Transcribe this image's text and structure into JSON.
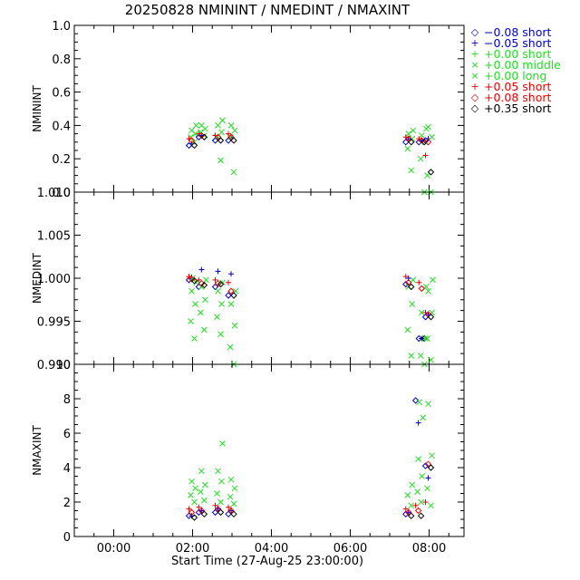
{
  "title": "20250828 NMININT / NMEDINT / NMAXINT",
  "xlabel": "Start Time (27-Aug-25 23:00:00)",
  "chart_data": {
    "type": "scatter",
    "x_unit": "time (HH:MM)",
    "x_ticks": [
      "00:00",
      "02:00",
      "04:00",
      "06:00",
      "08:00"
    ],
    "legend": [
      {
        "name": "−0.08 short",
        "color": "#0000cc",
        "marker": "diamond"
      },
      {
        "name": "−0.05 short",
        "color": "#0000cc",
        "marker": "plus"
      },
      {
        "name": "+0.00 short",
        "color": "#22dd22",
        "marker": "plus"
      },
      {
        "name": "+0.00 middle",
        "color": "#22dd22",
        "marker": "cross"
      },
      {
        "name": "+0.00 long",
        "color": "#22dd22",
        "marker": "cross"
      },
      {
        "name": "+0.05 short",
        "color": "#ee0000",
        "marker": "plus"
      },
      {
        "name": "+0.08 short",
        "color": "#ee0000",
        "marker": "diamond"
      },
      {
        "name": "+0.35 short",
        "color": "#000000",
        "marker": "diamond"
      }
    ],
    "panels": [
      {
        "ylabel": "NMININT",
        "ylim": [
          0.0,
          1.0
        ],
        "yticks": [
          0.0,
          0.2,
          0.4,
          0.6,
          0.8,
          1.0
        ],
        "ytick_labels": [
          "0.0",
          "0.2",
          "0.4",
          "0.6",
          "0.8",
          "1.0"
        ],
        "clusters": [
          {
            "x": "02:00",
            "series": {
              "-0.08": 0.28,
              "-0.05": 0.29,
              "green": [
                0.3,
                0.33,
                0.35,
                0.37,
                0.4
              ],
              "+0.05": 0.32,
              "+0.08": 0.31,
              "+0.35": 0.28
            }
          },
          {
            "x": "02:15",
            "series": {
              "-0.08": 0.33,
              "-0.05": 0.34,
              "green": [
                0.34,
                0.36,
                0.38,
                0.4
              ],
              "+0.05": 0.35,
              "+0.08": 0.34,
              "+0.35": 0.33
            }
          },
          {
            "x": "02:40",
            "series": {
              "-0.08": 0.31,
              "-0.05": 0.32,
              "green": [
                0.19,
                0.33,
                0.36,
                0.4,
                0.43
              ],
              "+0.05": 0.34,
              "+0.08": 0.33,
              "+0.35": 0.31
            }
          },
          {
            "x": "03:00",
            "series": {
              "-0.08": 0.31,
              "-0.05": 0.33,
              "green": [
                0.12,
                0.33,
                0.37,
                0.4
              ],
              "+0.05": 0.35,
              "+0.08": 0.33,
              "+0.35": 0.31
            }
          },
          {
            "x": "07:30",
            "series": {
              "-0.08": 0.3,
              "-0.05": 0.32,
              "green": [
                0.13,
                0.26,
                0.32,
                0.35,
                0.37
              ],
              "+0.05": 0.33,
              "+0.08": 0.32,
              "+0.35": 0.3
            }
          },
          {
            "x": "07:50",
            "series": {
              "-0.08": 0.3,
              "-0.05": 0.31,
              "green": [
                0.0,
                0.2,
                0.3,
                0.34,
                0.38
              ],
              "+0.05": 0.32,
              "+0.08": 0.31,
              "+0.35": 0.3
            }
          },
          {
            "x": "08:00",
            "series": {
              "-0.08": 0.31,
              "-0.05": 0.32,
              "green": [
                0.0,
                0.1,
                0.33,
                0.39
              ],
              "+0.05": 0.22,
              "+0.08": 0.3,
              "+0.35": 0.12
            }
          }
        ]
      },
      {
        "ylabel": "NMEDINT",
        "ylim": [
          0.99,
          1.01
        ],
        "yticks": [
          0.99,
          0.995,
          1.0,
          1.005,
          1.01
        ],
        "ytick_labels": [
          "0.990",
          "0.995",
          "1.000",
          "1.005",
          "1.010"
        ],
        "clusters": [
          {
            "x": "02:00",
            "series": {
              "-0.08": 0.9998,
              "-0.05": 1.0001,
              "green": [
                0.993,
                0.995,
                0.997,
                0.9985,
                0.9995,
                1.0
              ],
              "+0.05": 1.0002,
              "+0.08": 0.9999,
              "+0.35": 0.9997
            }
          },
          {
            "x": "02:15",
            "series": {
              "-0.08": 0.999,
              "-0.05": 1.001,
              "green": [
                0.994,
                0.996,
                0.9975,
                0.999,
                0.9998
              ],
              "+0.05": 0.9998,
              "+0.08": 0.9994,
              "+0.35": 0.9992
            }
          },
          {
            "x": "02:40",
            "series": {
              "-0.08": 0.999,
              "-0.05": 1.0008,
              "green": [
                0.9935,
                0.9955,
                0.997,
                0.9985,
                0.9995
              ],
              "+0.05": 0.9998,
              "+0.08": 0.9994,
              "+0.35": 0.9993
            }
          },
          {
            "x": "03:00",
            "series": {
              "-0.08": 0.998,
              "-0.05": 1.0005,
              "green": [
                0.99,
                0.992,
                0.9945,
                0.997,
                0.9985
              ],
              "+0.05": 0.9995,
              "+0.08": 0.9985,
              "+0.35": 0.998
            }
          },
          {
            "x": "07:30",
            "series": {
              "-0.08": 0.9993,
              "-0.05": 1.0,
              "green": [
                0.991,
                0.994,
                0.997,
                0.999,
                0.9998
              ],
              "+0.05": 1.0002,
              "+0.08": 0.9995,
              "+0.35": 0.999
            }
          },
          {
            "x": "07:50",
            "series": {
              "-0.08": 0.993,
              "-0.05": 0.993,
              "green": [
                0.99,
                0.991,
                0.993,
                0.996,
                0.999
              ],
              "+0.05": 0.9995,
              "+0.08": 0.9988,
              "+0.35": 0.993
            }
          },
          {
            "x": "08:00",
            "series": {
              "-0.08": 0.9955,
              "-0.05": 0.9958,
              "green": [
                0.9905,
                0.993,
                0.996,
                0.9985,
                0.9998
              ],
              "+0.05": 0.996,
              "+0.08": 0.9958,
              "+0.35": 0.9955
            }
          }
        ]
      },
      {
        "ylabel": "NMAXINT",
        "ylim": [
          0,
          10
        ],
        "yticks": [
          0,
          2,
          4,
          6,
          8,
          10
        ],
        "ytick_labels": [
          "0",
          "2",
          "4",
          "6",
          "8",
          "10"
        ],
        "clusters": [
          {
            "x": "02:00",
            "series": {
              "-0.08": 1.2,
              "-0.05": 1.2,
              "green": [
                2.0,
                2.4,
                2.8,
                3.2
              ],
              "+0.05": 1.6,
              "+0.08": 1.4,
              "+0.35": 1.1
            }
          },
          {
            "x": "02:15",
            "series": {
              "-0.08": 1.4,
              "-0.05": 1.5,
              "green": [
                2.1,
                2.6,
                3.0,
                3.8
              ],
              "+0.05": 1.7,
              "+0.08": 1.5,
              "+0.35": 1.3
            }
          },
          {
            "x": "02:40",
            "series": {
              "-0.08": 1.4,
              "-0.05": 1.6,
              "green": [
                2.0,
                2.5,
                3.2,
                3.8,
                5.4
              ],
              "+0.05": 1.8,
              "+0.08": 1.6,
              "+0.35": 1.4
            }
          },
          {
            "x": "03:00",
            "series": {
              "-0.08": 1.3,
              "-0.05": 1.5,
              "green": [
                1.9,
                2.3,
                2.8,
                3.3
              ],
              "+0.05": 1.7,
              "+0.08": 1.5,
              "+0.35": 1.3
            }
          },
          {
            "x": "07:30",
            "series": {
              "-0.08": 1.3,
              "-0.05": 1.4,
              "green": [
                1.8,
                2.4,
                3.0
              ],
              "+0.05": 1.6,
              "+0.08": 1.4,
              "+0.35": 1.2
            }
          },
          {
            "x": "07:45",
            "series": {
              "-0.08": 7.9,
              "-0.05": 6.6,
              "green": [
                2.0,
                2.6,
                3.5,
                4.5,
                6.9,
                7.8
              ],
              "+0.05": 1.8,
              "+0.08": 1.5,
              "+0.35": 1.2
            }
          },
          {
            "x": "08:00",
            "series": {
              "-0.08": 4.1,
              "-0.05": 3.4,
              "green": [
                1.8,
                2.8,
                4.7,
                7.7
              ],
              "+0.05": 2.0,
              "+0.08": 4.2,
              "+0.35": 4.0
            }
          }
        ]
      }
    ]
  }
}
